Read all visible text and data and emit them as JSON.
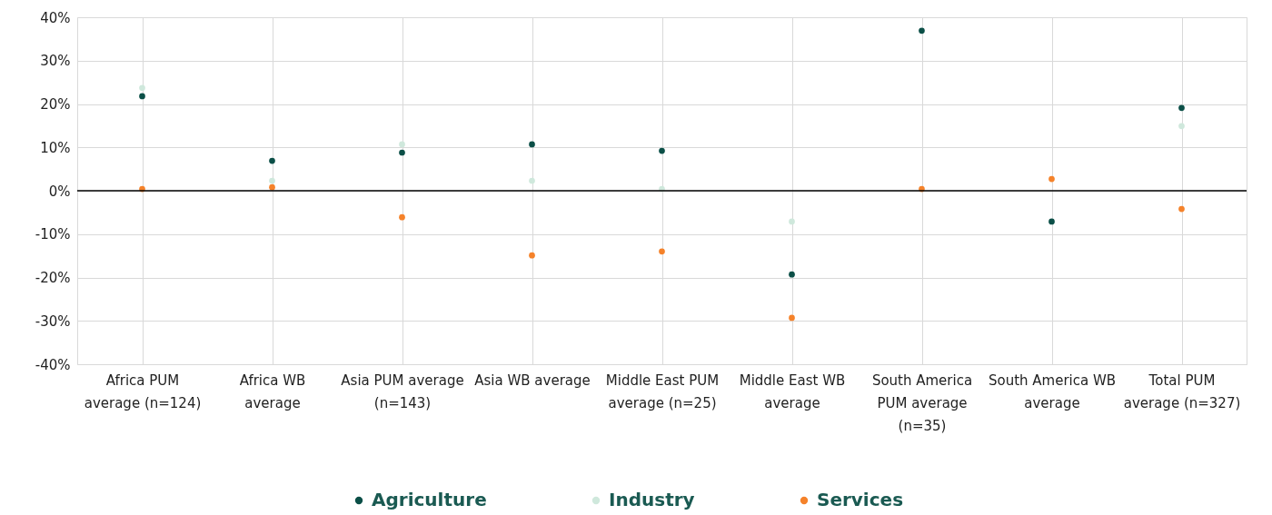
{
  "chart_data": {
    "type": "scatter",
    "categories": [
      "Africa PUM average (n=124)",
      "Africa WB average",
      "Asia PUM average (n=143)",
      "Asia WB average",
      "Middle East PUM average (n=25)",
      "Middle East WB average",
      "South America PUM average (n=35)",
      "South America WB average",
      "Total PUM average (n=327)"
    ],
    "series": [
      {
        "name": "Agriculture",
        "color": "#0b4f47",
        "values": [
          21.8,
          6.9,
          8.8,
          10.7,
          9.2,
          -19.3,
          36.9,
          -7.1,
          19.1
        ]
      },
      {
        "name": "Industry",
        "color": "#cfe8dc",
        "values": [
          23.7,
          2.3,
          10.7,
          2.3,
          0.4,
          -7.1,
          null,
          null,
          14.9
        ]
      },
      {
        "name": "Services",
        "color": "#f5822a",
        "values": [
          0.4,
          0.8,
          -6.1,
          -14.9,
          -14.0,
          -29.3,
          0.4,
          2.7,
          -4.2
        ]
      }
    ],
    "ylim": [
      -40,
      40
    ],
    "yticks": [
      {
        "value": -40,
        "label": "-40%"
      },
      {
        "value": -30,
        "label": "-30%"
      },
      {
        "value": -20,
        "label": "-20%"
      },
      {
        "value": -10,
        "label": "-10%"
      },
      {
        "value": 0,
        "label": "0%"
      },
      {
        "value": 10,
        "label": "10%"
      },
      {
        "value": 20,
        "label": "20%"
      },
      {
        "value": 30,
        "label": "30%"
      },
      {
        "value": 40,
        "label": "40%"
      }
    ],
    "ref_lines": [
      {
        "axis": "y",
        "value": 0,
        "color": "#000000"
      }
    ],
    "grid": true,
    "legend": "bottom",
    "marker": "circle"
  }
}
